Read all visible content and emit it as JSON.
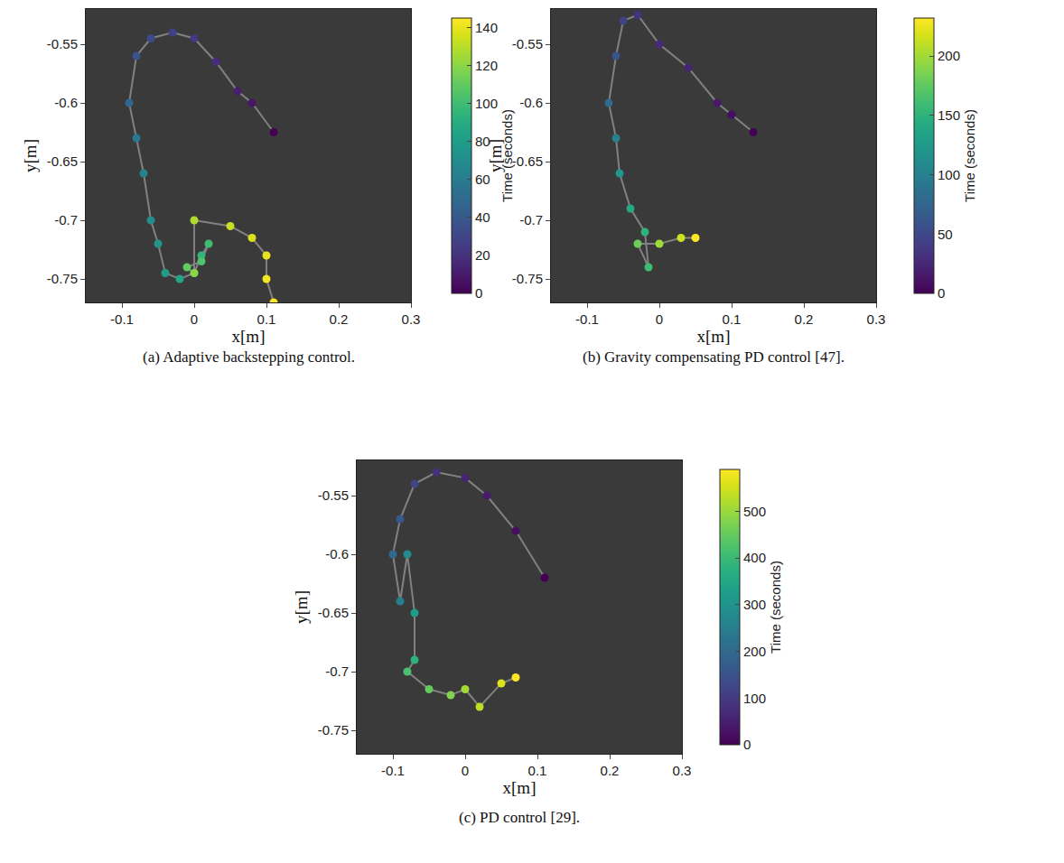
{
  "chart_data": [
    {
      "type": "scatter",
      "title": "(a) Adaptive backstepping control.",
      "x_label": "x[m]",
      "y_label": "y[m]",
      "x": [
        0.11,
        0.08,
        0.06,
        0.03,
        0.0,
        -0.03,
        -0.06,
        -0.08,
        -0.09,
        -0.08,
        -0.07,
        -0.06,
        -0.05,
        -0.04,
        -0.02,
        0.0,
        0.01,
        0.02,
        0.01,
        -0.01,
        0.0,
        0.0,
        0.05,
        0.08,
        0.1,
        0.1,
        0.11
      ],
      "y": [
        -0.625,
        -0.6,
        -0.59,
        -0.565,
        -0.545,
        -0.54,
        -0.545,
        -0.56,
        -0.6,
        -0.63,
        -0.66,
        -0.7,
        -0.72,
        -0.745,
        -0.75,
        -0.745,
        -0.73,
        -0.72,
        -0.735,
        -0.74,
        -0.745,
        -0.7,
        -0.705,
        -0.715,
        -0.73,
        -0.75,
        -0.77
      ],
      "time": [
        0,
        8,
        12,
        18,
        24,
        28,
        32,
        38,
        48,
        58,
        64,
        70,
        75,
        80,
        85,
        90,
        95,
        100,
        105,
        110,
        120,
        128,
        133,
        137,
        140,
        143,
        145
      ],
      "xlim": [
        -0.15,
        0.3
      ],
      "ylim": [
        -0.77,
        -0.52
      ],
      "xticks": [
        -0.1,
        0,
        0.1,
        0.2,
        0.3
      ],
      "yticks": [
        -0.75,
        -0.7,
        -0.65,
        -0.6,
        -0.55
      ],
      "colorbar": {
        "label": "Time (seconds)",
        "range": [
          0,
          145
        ],
        "ticks": [
          0,
          20,
          40,
          60,
          80,
          100,
          120,
          140
        ]
      }
    },
    {
      "type": "scatter",
      "title": "(b) Gravity compensating PD control [47].",
      "x_label": "x[m]",
      "y_label": "y[m]",
      "x": [
        0.13,
        0.1,
        0.08,
        0.04,
        0.0,
        -0.03,
        -0.05,
        -0.06,
        -0.07,
        -0.06,
        -0.055,
        -0.04,
        -0.02,
        -0.015,
        -0.03,
        0.0,
        0.03,
        0.05
      ],
      "y": [
        -0.625,
        -0.61,
        -0.6,
        -0.57,
        -0.55,
        -0.525,
        -0.53,
        -0.56,
        -0.6,
        -0.63,
        -0.66,
        -0.69,
        -0.71,
        -0.74,
        -0.72,
        -0.72,
        -0.715,
        -0.715
      ],
      "time": [
        0,
        8,
        15,
        22,
        28,
        34,
        45,
        60,
        80,
        100,
        120,
        140,
        150,
        160,
        180,
        200,
        215,
        232
      ],
      "xlim": [
        -0.15,
        0.3
      ],
      "ylim": [
        -0.77,
        -0.52
      ],
      "xticks": [
        -0.1,
        0,
        0.1,
        0.2,
        0.3
      ],
      "yticks": [
        -0.75,
        -0.7,
        -0.65,
        -0.6,
        -0.55
      ],
      "colorbar": {
        "label": "Time (seconds)",
        "range": [
          0,
          232
        ],
        "ticks": [
          0,
          50,
          100,
          150,
          200
        ]
      }
    },
    {
      "type": "scatter",
      "title": "(c) PD control [29].",
      "x_label": "x[m]",
      "y_label": "y[m]",
      "x": [
        0.11,
        0.07,
        0.03,
        0.0,
        -0.04,
        -0.07,
        -0.09,
        -0.1,
        -0.09,
        -0.08,
        -0.07,
        -0.07,
        -0.08,
        -0.05,
        -0.02,
        0.0,
        0.02,
        0.05,
        0.07
      ],
      "y": [
        -0.62,
        -0.58,
        -0.55,
        -0.535,
        -0.53,
        -0.54,
        -0.57,
        -0.6,
        -0.64,
        -0.6,
        -0.65,
        -0.69,
        -0.7,
        -0.715,
        -0.72,
        -0.715,
        -0.73,
        -0.71,
        -0.705
      ],
      "time": [
        0,
        20,
        40,
        60,
        80,
        120,
        160,
        200,
        250,
        280,
        320,
        380,
        420,
        450,
        480,
        510,
        530,
        560,
        590
      ],
      "xlim": [
        -0.15,
        0.3
      ],
      "ylim": [
        -0.77,
        -0.52
      ],
      "xticks": [
        -0.1,
        0,
        0.1,
        0.2,
        0.3
      ],
      "yticks": [
        -0.75,
        -0.7,
        -0.65,
        -0.6,
        -0.55
      ],
      "colorbar": {
        "label": "Time (seconds)",
        "range": [
          0,
          590
        ],
        "ticks": [
          0,
          100,
          200,
          300,
          400,
          500
        ]
      }
    }
  ]
}
